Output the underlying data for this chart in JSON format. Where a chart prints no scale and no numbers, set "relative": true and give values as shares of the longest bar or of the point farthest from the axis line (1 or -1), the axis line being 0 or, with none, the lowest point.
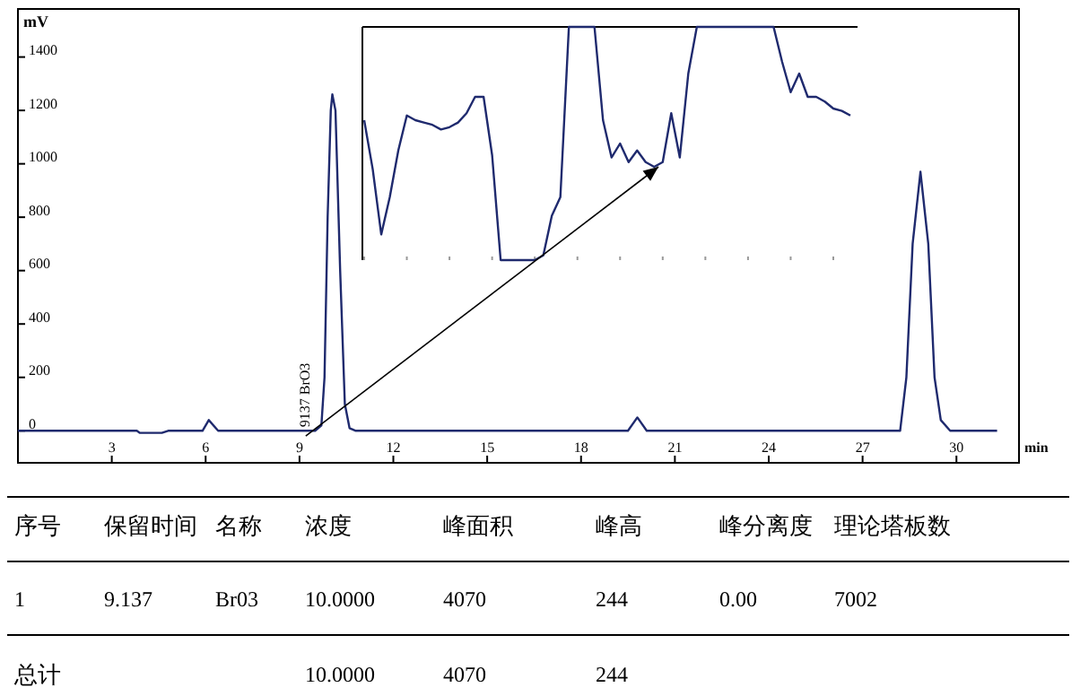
{
  "chart_data": [
    {
      "type": "line",
      "xlabel": "min",
      "ylabel": "mV",
      "xlim": [
        0,
        32
      ],
      "ylim": [
        -120,
        1580
      ],
      "xticks": [
        3,
        6,
        9,
        12,
        15,
        18,
        21,
        24,
        27,
        30
      ],
      "yticks": [
        0,
        200,
        400,
        600,
        800,
        1000,
        1200,
        1400
      ],
      "grid": false,
      "line_style": "solid",
      "series": [
        {
          "color": "#1f2a6e",
          "x": [
            0,
            3.8,
            3.9,
            4.6,
            4.8,
            5.9,
            6.1,
            6.4,
            9.5,
            9.7,
            9.8,
            9.9,
            10,
            10.05,
            10.15,
            10.3,
            10.45,
            10.6,
            10.8,
            19.5,
            19.8,
            20.1,
            28.2,
            28.4,
            28.6,
            28.85,
            29.1,
            29.3,
            29.5,
            29.8,
            31.3
          ],
          "values": [
            0,
            0,
            -8,
            -8,
            0,
            0,
            40,
            0,
            0,
            20,
            200,
            800,
            1200,
            1260,
            1200,
            600,
            100,
            10,
            0,
            0,
            50,
            0,
            0,
            200,
            700,
            970,
            700,
            200,
            40,
            0,
            0
          ]
        }
      ],
      "annotations": [
        {
          "text": "9137 BrO3",
          "x": 9.137,
          "y": 0
        }
      ]
    },
    {
      "type": "line",
      "relative": true,
      "tick_labels": false,
      "line_style": "solid",
      "categories": [
        null,
        null,
        null,
        null,
        null,
        null,
        null,
        null,
        null,
        null,
        null,
        null,
        null,
        null,
        null,
        null,
        null,
        null,
        null,
        null,
        null,
        null,
        null,
        null,
        null,
        null,
        null,
        null,
        null,
        null,
        null,
        null,
        null,
        null,
        null,
        null,
        null,
        null,
        null,
        null,
        null,
        null,
        null,
        null,
        null,
        null,
        null,
        null,
        null,
        null,
        null,
        null,
        null,
        null,
        null,
        null,
        null,
        null
      ],
      "series": [
        {
          "color": "#1f2a6e",
          "values": [
            0.6,
            0.39,
            0.11,
            0.27,
            0.47,
            0.62,
            0.6,
            0.59,
            0.58,
            0.56,
            0.57,
            0.59,
            0.63,
            0.7,
            0.7,
            0.45,
            0,
            0,
            0,
            0,
            0,
            0.02,
            0.19,
            0.27,
            1,
            1,
            1,
            1,
            0.6,
            0.44,
            0.5,
            0.42,
            0.47,
            0.42,
            0.4,
            0.42,
            0.63,
            0.44,
            0.8,
            1,
            1,
            1,
            1,
            1,
            1,
            1,
            1,
            1,
            1,
            0.85,
            0.72,
            0.8,
            0.7,
            0.7,
            0.68,
            0.65,
            0.64,
            0.62
          ]
        }
      ]
    },
    {
      "type": "other",
      "categories": [
        "序号",
        "保留时间",
        "名称",
        "浓度",
        "峰面积",
        "峰高",
        "峰分离度",
        "理论塔板数"
      ],
      "cell_labels": [
        [
          "1",
          "9.137",
          "Br03",
          "10.0000",
          "4070",
          "244",
          "0.00",
          "7002"
        ],
        [
          "总计",
          null,
          null,
          "10.0000",
          "4070",
          "244",
          null,
          null
        ]
      ]
    }
  ]
}
